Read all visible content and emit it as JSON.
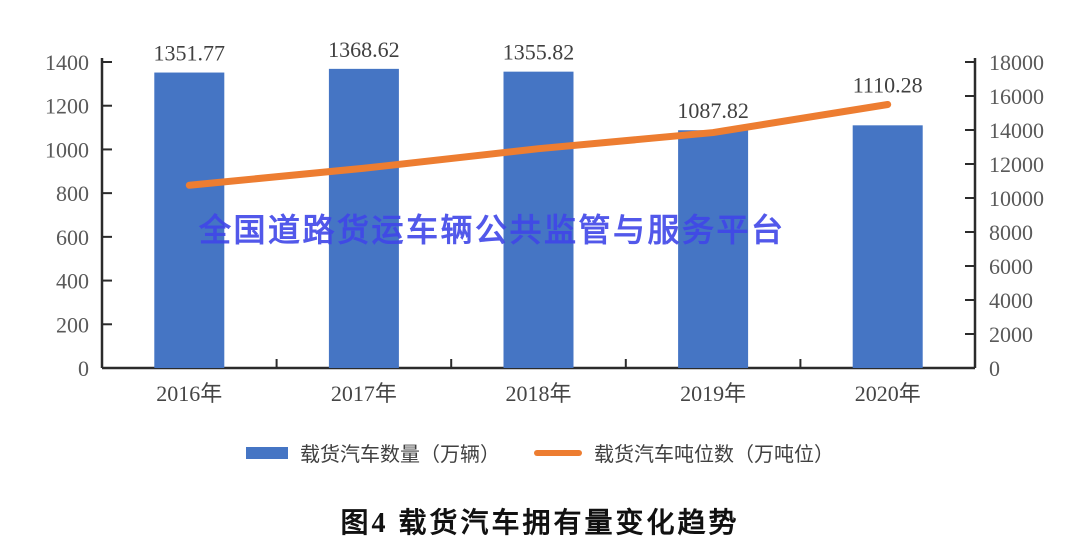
{
  "watermark": {
    "text": "全国道路货运车辆公共监管与服务平台",
    "color": "#4046e8"
  },
  "figure_title": {
    "text": "图4 载货汽车拥有量变化趋势"
  },
  "chart_data": {
    "type": "bar",
    "subtype": "combo-bar-line-dual-axis",
    "categories": [
      "2016年",
      "2017年",
      "2018年",
      "2019年",
      "2020年"
    ],
    "series": [
      {
        "name": "载货汽车数量（万辆）",
        "type": "bar",
        "axis": "left",
        "color": "#4575c4",
        "values": [
          1351.77,
          1368.62,
          1355.82,
          1087.82,
          1110.28
        ],
        "labels": [
          "1351.77",
          "1368.62",
          "1355.82",
          "1087.82",
          "1110.28"
        ]
      },
      {
        "name": "载货汽车吨位数（万吨位）",
        "type": "line",
        "axis": "right",
        "color": "#ed7d31",
        "values": [
          10750,
          11750,
          12900,
          13850,
          15500
        ],
        "values_estimated": true
      }
    ],
    "left_axis": {
      "min": 0,
      "max": 1400,
      "step": 200,
      "tick_labels": [
        "0",
        "200",
        "400",
        "600",
        "800",
        "1000",
        "1200",
        "1400"
      ]
    },
    "right_axis": {
      "min": 0,
      "max": 18000,
      "step": 2000,
      "tick_labels": [
        "0",
        "2000",
        "4000",
        "6000",
        "8000",
        "10000",
        "12000",
        "14000",
        "16000",
        "18000"
      ]
    },
    "grid": false,
    "legend_position": "bottom",
    "axis_color": "#2b2b2b",
    "tick_label_color": "#595959",
    "data_label_color": "#404040"
  }
}
